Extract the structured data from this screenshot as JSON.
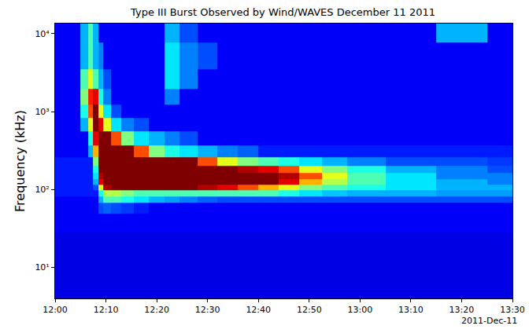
{
  "chart_data": {
    "type": "heatmap",
    "title": "Type III Burst Observed by Wind/WAVES December 11 2011",
    "y_label": "Frequency (kHz)",
    "annotations": [
      "2011-Dec-11"
    ],
    "log": "y",
    "grid": false,
    "color": "jet",
    "x": [
      "2011-12-11 12:00",
      "2011-12-11 12:04",
      "2011-12-11 12:06",
      "2011-12-11 12:07",
      "2011-12-11 12:08",
      "2011-12-11 12:09",
      "2011-12-11 12:10",
      "2011-12-11 12:12",
      "2011-12-11 12:14",
      "2011-12-11 12:17",
      "2011-12-11 12:20",
      "2011-12-11 12:23",
      "2011-12-11 12:26",
      "2011-12-11 12:30",
      "2011-12-11 12:34",
      "2011-12-11 12:38",
      "2011-12-11 12:42",
      "2011-12-11 12:46",
      "2011-12-11 12:50",
      "2011-12-11 12:55",
      "2011-12-11 13:00",
      "2011-12-11 13:10",
      "2011-12-11 13:20",
      "2011-12-11 13:30"
    ],
    "y": [
      5,
      10,
      20,
      40,
      60,
      75,
      90,
      105,
      125,
      150,
      180,
      220,
      300,
      450,
      700,
      1000,
      1500,
      2500,
      5000,
      12000
    ],
    "cells": [
      [
        1,
        1,
        1,
        1,
        1,
        1,
        1,
        1,
        1,
        1,
        1,
        1,
        1,
        1,
        1,
        1,
        1,
        1,
        1,
        1,
        1,
        1,
        1,
        1
      ],
      [
        1,
        1,
        1,
        1,
        1,
        1,
        1,
        1,
        1,
        1,
        1,
        1,
        1,
        1,
        1,
        1,
        1,
        1,
        1,
        1,
        1,
        1,
        1,
        1
      ],
      [
        1,
        1,
        1,
        1,
        1,
        1,
        1,
        1,
        1,
        1,
        1,
        1,
        1,
        1,
        1,
        1,
        1,
        1,
        1,
        1,
        1,
        1,
        1,
        1
      ],
      [
        1.2,
        1.2,
        1.2,
        1.2,
        1.2,
        1.2,
        1.2,
        1.2,
        1.2,
        1.2,
        1.2,
        1.2,
        1.2,
        1.2,
        1.2,
        1.2,
        1.2,
        1.2,
        1.2,
        1.2,
        1.2,
        1.2,
        1.2,
        1.2
      ],
      [
        1.2,
        1.2,
        1.2,
        1.2,
        1.2,
        2,
        2.2,
        2,
        1.8,
        1.5,
        1.2,
        1.2,
        1.2,
        1.2,
        1.2,
        1.2,
        1.2,
        1.2,
        1.2,
        1.2,
        1.2,
        1.2,
        1.2,
        1.2
      ],
      [
        1.2,
        1.2,
        1.2,
        1.2,
        1.2,
        3,
        4.5,
        4.5,
        4,
        3.5,
        3,
        2.8,
        2.5,
        2.2,
        2,
        2,
        2,
        2,
        2,
        2,
        2,
        2,
        2,
        2
      ],
      [
        1.5,
        1.5,
        1.5,
        1.5,
        1.5,
        4,
        5.5,
        5.5,
        5,
        4.5,
        4.5,
        4.5,
        4.5,
        4.5,
        4.5,
        4.5,
        4.5,
        4,
        3.5,
        3.2,
        3,
        3,
        2.8,
        2.8
      ],
      [
        1.5,
        1.5,
        1.5,
        1.5,
        2,
        6,
        9.5,
        10,
        10,
        10,
        10,
        10,
        10,
        9.5,
        9,
        8,
        7,
        6,
        5,
        4.5,
        4,
        3.5,
        3,
        3
      ],
      [
        1.5,
        1.5,
        1.5,
        1.5,
        3,
        9,
        10,
        10,
        10,
        10,
        10,
        10,
        10,
        10,
        10,
        10,
        10,
        9,
        7,
        5.5,
        4.5,
        3.5,
        3,
        2.5
      ],
      [
        1.5,
        1.5,
        1.5,
        1.5,
        3.5,
        9.5,
        10,
        10,
        10,
        10,
        10,
        10,
        10,
        10,
        10,
        10,
        10,
        9.5,
        8,
        6,
        4.5,
        3.5,
        2.5,
        2.5
      ],
      [
        1.5,
        1.5,
        1.5,
        1.5,
        4,
        10,
        10,
        10,
        10,
        10,
        10,
        10,
        10,
        10,
        10,
        9.5,
        9,
        8,
        6,
        5,
        4,
        3,
        2.5,
        2
      ],
      [
        1.5,
        1.5,
        1.5,
        1.5,
        5,
        10,
        10,
        10,
        10,
        10,
        10,
        10,
        10,
        8,
        6,
        5,
        4.5,
        4,
        3.5,
        3,
        2.5,
        2,
        2,
        1.8
      ],
      [
        1.2,
        1.2,
        1.2,
        3,
        7,
        10,
        10,
        10,
        10,
        8,
        5,
        4,
        3.5,
        3,
        2.5,
        2.2,
        1.5,
        1.5,
        1.5,
        1.5,
        1.5,
        1.5,
        1.5,
        1.5
      ],
      [
        1.2,
        1.2,
        1.2,
        4,
        9,
        10,
        10,
        8,
        5,
        3.5,
        3,
        2.5,
        2,
        1.2,
        1.2,
        1.2,
        1.2,
        1.2,
        1.2,
        1.2,
        1.2,
        1.2,
        1.2,
        1.2
      ],
      [
        1.2,
        1.2,
        3,
        6,
        10,
        9,
        6,
        3.5,
        2.5,
        2,
        1.2,
        1.2,
        1.2,
        1.2,
        1.2,
        1.2,
        1.2,
        1.2,
        1.2,
        1.2,
        1.2,
        1.2,
        1.2,
        1.2
      ],
      [
        1.2,
        1.2,
        4,
        8,
        10,
        6,
        3.5,
        2,
        1.2,
        1.2,
        1.2,
        1.2,
        1.2,
        1.2,
        1.2,
        1.2,
        1.2,
        1.2,
        1.2,
        1.2,
        1.2,
        1.2,
        1.2,
        1.2
      ],
      [
        1.2,
        1.2,
        5,
        8.5,
        9,
        4,
        2.5,
        1.2,
        1.2,
        1.2,
        1.2,
        2.5,
        1.2,
        1.2,
        1.2,
        1.2,
        1.2,
        1.2,
        1.2,
        1.2,
        1.2,
        1.2,
        1.2,
        1.2
      ],
      [
        1.2,
        1.2,
        4.5,
        6,
        4.5,
        3,
        2,
        1.2,
        1.2,
        1.2,
        1.2,
        3.5,
        2.5,
        1.2,
        1.2,
        1.2,
        1.2,
        1.2,
        1.2,
        1.2,
        1.2,
        1.2,
        1.2,
        1.2
      ],
      [
        1.2,
        1.2,
        3,
        4.5,
        3,
        2.5,
        1.2,
        1.2,
        1.2,
        1.2,
        1.2,
        3.5,
        2.5,
        2,
        1.2,
        1.2,
        1.2,
        1.2,
        1.2,
        1.2,
        1.2,
        1.2,
        1.2,
        1.2
      ],
      [
        1.2,
        1.2,
        3,
        4.5,
        3,
        1.2,
        1.2,
        1.2,
        1.2,
        1.2,
        1.2,
        3,
        2,
        1.2,
        1.2,
        1.2,
        1.2,
        1.2,
        1.2,
        1.2,
        1.2,
        1.2,
        3,
        1.2
      ]
    ],
    "zlim": [
      0,
      10
    ],
    "xlim": [
      "2011-12-11 12:00",
      "2011-12-11 13:30"
    ],
    "xticks": [
      {
        "value": "2011-12-11 12:00",
        "label": "12:00"
      },
      {
        "value": "2011-12-11 12:10",
        "label": "12:10"
      },
      {
        "value": "2011-12-11 12:20",
        "label": "12:20"
      },
      {
        "value": "2011-12-11 12:30",
        "label": "12:30"
      },
      {
        "value": "2011-12-11 12:40",
        "label": "12:40"
      },
      {
        "value": "2011-12-11 12:50",
        "label": "12:50"
      },
      {
        "value": "2011-12-11 13:00",
        "label": "13:00"
      },
      {
        "value": "2011-12-11 13:10",
        "label": "13:10"
      },
      {
        "value": "2011-12-11 13:20",
        "label": "13:20"
      },
      {
        "value": "2011-12-11 13:30",
        "label": "13:30"
      }
    ],
    "ylim": [
      4,
      13500
    ],
    "yticks": [
      {
        "value": 10,
        "label": "10¹"
      },
      {
        "value": 100,
        "label": "10²"
      },
      {
        "value": 1000,
        "label": "10³"
      },
      {
        "value": 10000,
        "label": "10⁴"
      }
    ]
  }
}
